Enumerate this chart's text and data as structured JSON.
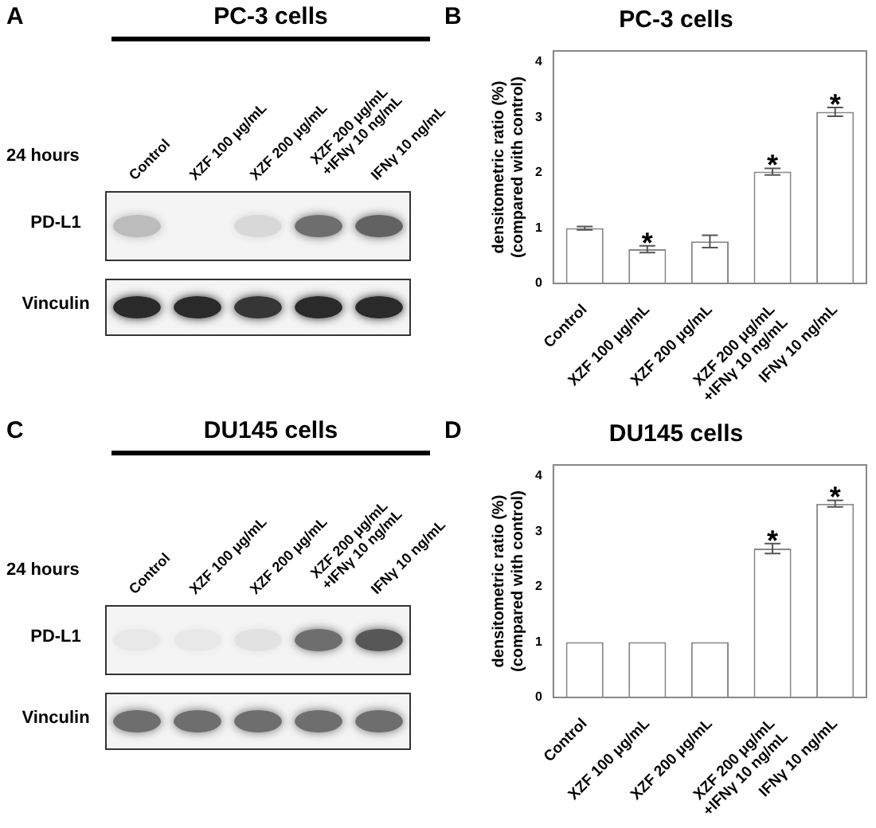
{
  "chart_data": [
    {
      "type": "other",
      "title": "PC-3 cells",
      "categories": [
        "Control",
        "XZF 100 μg/mL",
        "XZF 200 μg/mL",
        "XZF 200 μg/mL\n+IFNγ 10 ng/mL",
        "IFNγ 10 ng/mL"
      ],
      "annotations": [
        "A",
        "24 hours",
        "PD-L1",
        "Vinculin"
      ]
    },
    {
      "type": "bar",
      "title": "PC-3 cells",
      "ylabel": "densitometric ratio (%)\n(compared with control)",
      "categories": [
        "Control",
        "XZF 100 μg/mL",
        "XZF 200 μg/mL",
        "XZF 200 μg/mL\n+IFNγ 10 ng/mL",
        "IFNγ 10 ng/mL"
      ],
      "values": [
        1.0,
        0.62,
        0.76,
        2.02,
        3.1
      ],
      "errors": [
        0.03,
        0.06,
        0.11,
        0.06,
        0.08
      ],
      "color": "#ffffff",
      "ylim": [
        0,
        4.2
      ],
      "yticks": [
        0,
        1,
        2,
        3,
        4
      ],
      "grid": false,
      "annotations": [
        "B",
        {
          "text": "*",
          "x": "XZF 100 μg/mL",
          "y": 0.68
        },
        {
          "text": "*",
          "x": "XZF 200 μg/mL\n+IFNγ 10 ng/mL",
          "y": 2.08
        },
        {
          "text": "*",
          "x": "IFNγ 10 ng/mL",
          "y": 3.18
        }
      ]
    },
    {
      "type": "other",
      "title": "DU145 cells",
      "categories": [
        "Control",
        "XZF 100 μg/mL",
        "XZF 200 μg/mL",
        "XZF 200 μg/mL\n+IFNγ 10 ng/mL",
        "IFNγ 10 ng/mL"
      ],
      "annotations": [
        "C",
        "24 hours",
        "PD-L1",
        "Vinculin"
      ]
    },
    {
      "type": "bar",
      "title": "DU145 cells",
      "ylabel": "densitometric ratio (%)\n(compared with control)",
      "categories": [
        "Control",
        "XZF 100 μg/mL",
        "XZF 200 μg/mL",
        "XZF 200 μg/mL\n+IFNγ 10 ng/mL",
        "IFNγ 10 ng/mL"
      ],
      "values": [
        1.0,
        1.0,
        1.0,
        2.69,
        3.5
      ],
      "errors": [
        null,
        null,
        null,
        0.09,
        0.06
      ],
      "color": "#ffffff",
      "ylim": [
        0,
        4.2
      ],
      "yticks": [
        0,
        1,
        2,
        3,
        4
      ],
      "grid": false,
      "annotations": [
        "D",
        {
          "text": "*",
          "x": "XZF 200 μg/mL\n+IFNγ 10 ng/mL",
          "y": 2.78
        },
        {
          "text": "*",
          "x": "IFNγ 10 ng/mL",
          "y": 3.56
        }
      ]
    }
  ]
}
